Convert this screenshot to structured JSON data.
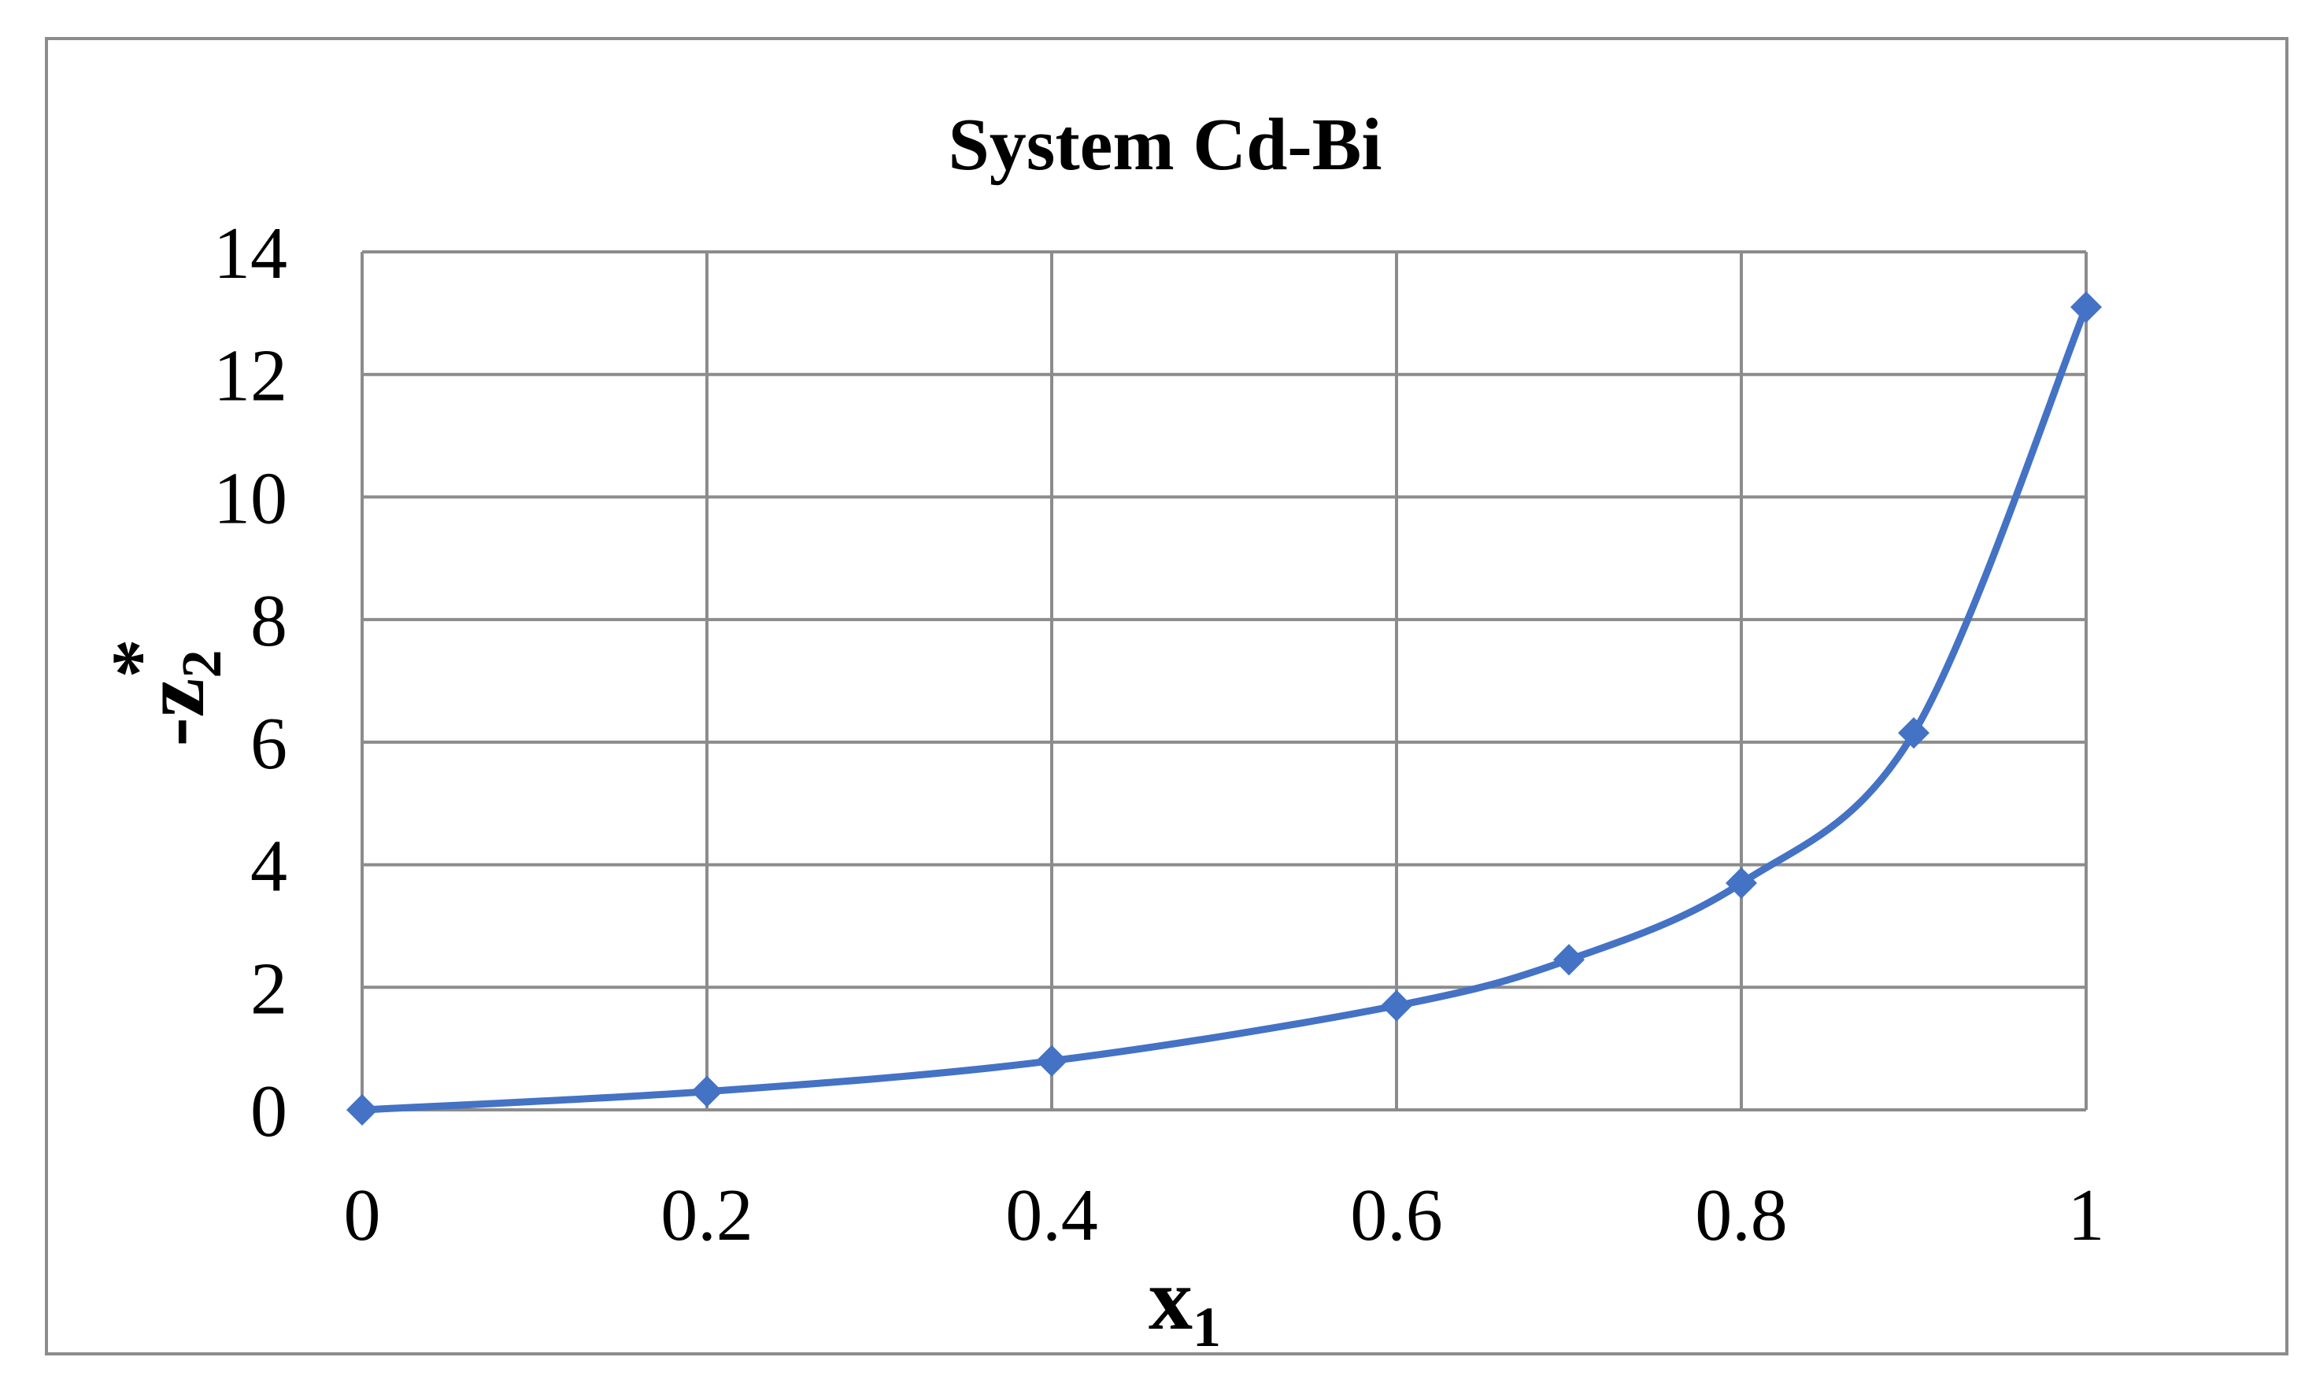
{
  "chart_data": {
    "type": "line",
    "title": "System Cd-Bi",
    "xlabel": {
      "main": "x",
      "sub": "1"
    },
    "ylabel": {
      "main": "-z",
      "sub": "2",
      "sup": "*"
    },
    "x": [
      0,
      0.2,
      0.4,
      0.6,
      0.7,
      0.8,
      0.9,
      1.0
    ],
    "series": [
      {
        "values": [
          0,
          0.3,
          0.8,
          1.7,
          2.45,
          3.7,
          6.15,
          13.1
        ]
      }
    ],
    "xlim": [
      0,
      1
    ],
    "ylim": [
      0,
      14
    ],
    "x_ticks": [
      "0",
      "0.2",
      "0.4",
      "0.6",
      "0.8",
      "1"
    ],
    "x_tick_values": [
      0,
      0.2,
      0.4,
      0.6,
      0.8,
      1
    ],
    "y_ticks": [
      "0",
      "2",
      "4",
      "6",
      "8",
      "10",
      "12",
      "14"
    ],
    "y_tick_values": [
      0,
      2,
      4,
      6,
      8,
      10,
      12,
      14
    ],
    "grid": true,
    "legend": "none",
    "colors": {
      "series": "#4472c4",
      "grid": "#8c8c8c",
      "frame": "#8c8c8c",
      "text": "#000000"
    },
    "marker": "diamond-icon",
    "smooth": true
  }
}
